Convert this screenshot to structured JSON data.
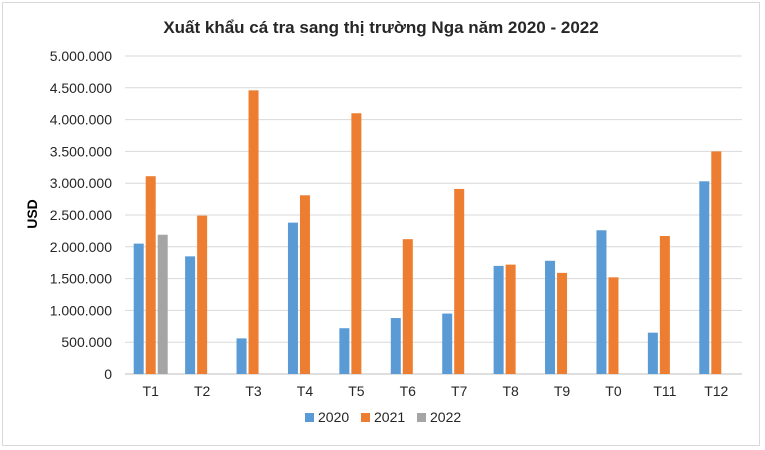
{
  "chart_data": {
    "type": "bar",
    "title": "Xuất khẩu cá tra sang thị trường Nga năm 2020 - 2022",
    "xlabel": "",
    "ylabel": "USD",
    "categories": [
      "T1",
      "T2",
      "T3",
      "T4",
      "T5",
      "T6",
      "T7",
      "T8",
      "T9",
      "T0",
      "T11",
      "T12"
    ],
    "series": [
      {
        "name": "2020",
        "color": "#5b9bd5",
        "values": [
          2050000,
          1850000,
          560000,
          2380000,
          720000,
          880000,
          950000,
          1700000,
          1780000,
          2260000,
          650000,
          3030000
        ]
      },
      {
        "name": "2021",
        "color": "#ed7d31",
        "values": [
          3110000,
          2490000,
          4460000,
          2810000,
          4100000,
          2120000,
          2910000,
          1720000,
          1590000,
          1520000,
          2170000,
          3500000
        ]
      },
      {
        "name": "2022",
        "color": "#a5a5a5",
        "values": [
          2190000,
          null,
          null,
          null,
          null,
          null,
          null,
          null,
          null,
          null,
          null,
          null
        ]
      }
    ],
    "ylim": [
      0,
      5000000
    ],
    "yticks": [
      0,
      500000,
      1000000,
      1500000,
      2000000,
      2500000,
      3000000,
      3500000,
      4000000,
      4500000,
      5000000
    ],
    "ytick_labels": [
      "0",
      "500.000",
      "1.000.000",
      "1.500.000",
      "2.000.000",
      "2.500.000",
      "3.000.000",
      "3.500.000",
      "4.000.000",
      "4.500.000",
      "5.000.000"
    ],
    "grid": true,
    "legend_position": "bottom"
  }
}
